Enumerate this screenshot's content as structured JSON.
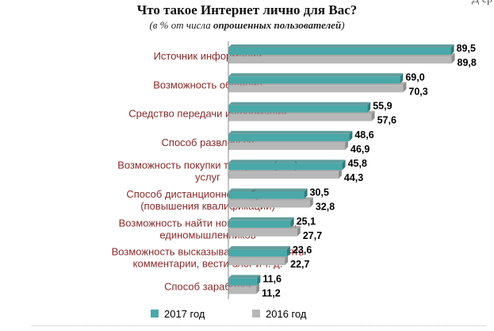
{
  "header": {
    "corner_fragment": "Д ер",
    "title": "Что такое Интернет лично для Вас?",
    "subtitle_prefix": "(в % от числа ",
    "subtitle_bold": "опрошенных пользователей",
    "subtitle_suffix": ")"
  },
  "chart_data": {
    "type": "bar",
    "orientation": "horizontal",
    "title": "Что такое Интернет лично для Вас?",
    "subtitle": "(в % от числа опрошенных пользователей)",
    "categories": [
      [
        "Источник информации"
      ],
      [
        "Возможность общения"
      ],
      [
        "Средство передачи информации"
      ],
      [
        "Способ развлечься"
      ],
      [
        "Возможность покупки товаров и (или)",
        "услуг"
      ],
      [
        "Способ дистанционного обучения",
        "(повышения квалификации)"
      ],
      [
        "Возможность найти новых знакомых,",
        "единомышленников"
      ],
      [
        "Возможность высказываться, оставлять",
        "комментарии, вести блог и т. д."
      ],
      [
        "Способ заработка"
      ]
    ],
    "series": [
      {
        "name": "2017 год",
        "color": "#4aa8a8",
        "values": [
          89.5,
          69.0,
          55.9,
          48.6,
          45.8,
          30.5,
          25.1,
          23.6,
          11.6
        ],
        "labels": [
          "89,5",
          "69,0",
          "55,9",
          "48,6",
          "45,8",
          "30,5",
          "25,1",
          "23,6",
          "11,6"
        ]
      },
      {
        "name": "2016 год",
        "color": "#b8b8b8",
        "values": [
          89.8,
          70.3,
          57.6,
          46.9,
          44.3,
          32.8,
          27.7,
          22.7,
          11.2
        ],
        "labels": [
          "89,8",
          "70,3",
          "57,6",
          "46,9",
          "44,3",
          "32,8",
          "27,7",
          "22,7",
          "11,2"
        ]
      }
    ],
    "xlim": [
      0,
      100
    ],
    "category_label_color": "#8b2a2a",
    "legend_position": "bottom",
    "grid": false
  }
}
